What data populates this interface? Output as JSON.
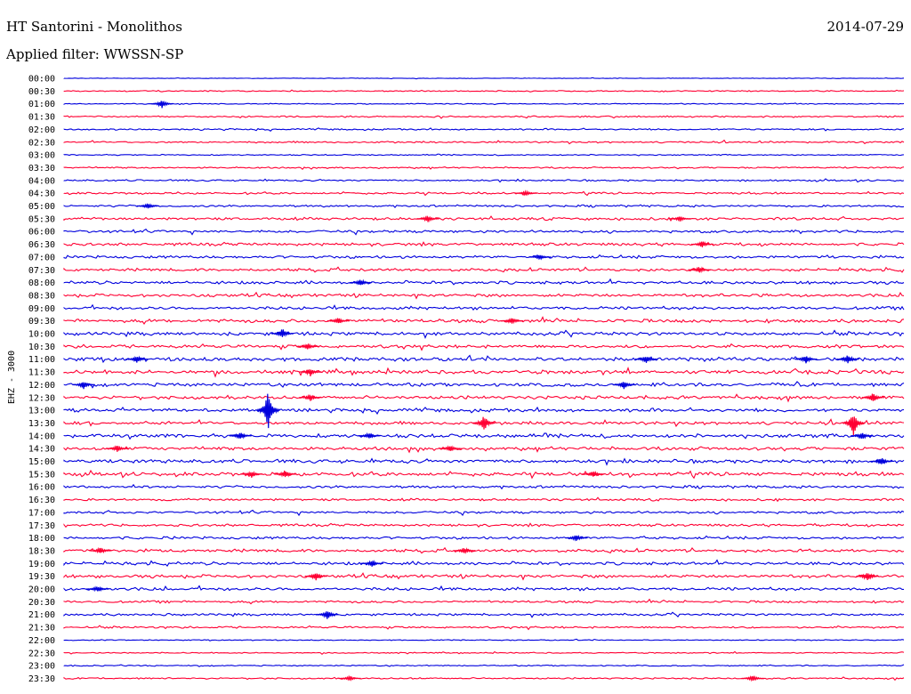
{
  "header": {
    "station": "HT Santorini - Monolithos",
    "date": "2014-07-29",
    "filter": "Applied filter: WWSSN-SP"
  },
  "chart_data": {
    "type": "line",
    "ylabel": "EHZ - 3000",
    "x_range": [
      0,
      30
    ],
    "grid": false,
    "colors": {
      "even": "#0000dd",
      "odd": "#ff0033"
    },
    "rows": [
      {
        "label": "00:00",
        "amp": 0.3
      },
      {
        "label": "00:30",
        "amp": 0.6
      },
      {
        "label": "01:00",
        "amp": 0.5
      },
      {
        "label": "01:30",
        "amp": 0.8
      },
      {
        "label": "02:00",
        "amp": 0.8
      },
      {
        "label": "02:30",
        "amp": 0.9
      },
      {
        "label": "03:00",
        "amp": 0.6
      },
      {
        "label": "03:30",
        "amp": 0.8
      },
      {
        "label": "04:00",
        "amp": 0.9
      },
      {
        "label": "04:30",
        "amp": 1.0
      },
      {
        "label": "05:00",
        "amp": 1.1
      },
      {
        "label": "05:30",
        "amp": 1.4
      },
      {
        "label": "06:00",
        "amp": 1.4
      },
      {
        "label": "06:30",
        "amp": 1.5
      },
      {
        "label": "07:00",
        "amp": 1.5
      },
      {
        "label": "07:30",
        "amp": 1.5
      },
      {
        "label": "08:00",
        "amp": 1.6
      },
      {
        "label": "08:30",
        "amp": 1.6
      },
      {
        "label": "09:00",
        "amp": 1.6
      },
      {
        "label": "09:30",
        "amp": 1.8
      },
      {
        "label": "10:00",
        "amp": 1.8
      },
      {
        "label": "10:30",
        "amp": 1.7
      },
      {
        "label": "11:00",
        "amp": 2.0
      },
      {
        "label": "11:30",
        "amp": 2.0
      },
      {
        "label": "12:00",
        "amp": 1.8
      },
      {
        "label": "12:30",
        "amp": 1.8
      },
      {
        "label": "13:00",
        "amp": 1.7
      },
      {
        "label": "13:30",
        "amp": 1.7
      },
      {
        "label": "14:00",
        "amp": 1.9
      },
      {
        "label": "14:30",
        "amp": 1.8
      },
      {
        "label": "15:00",
        "amp": 1.9
      },
      {
        "label": "15:30",
        "amp": 1.9
      },
      {
        "label": "16:00",
        "amp": 1.4
      },
      {
        "label": "16:30",
        "amp": 1.2
      },
      {
        "label": "17:00",
        "amp": 1.3
      },
      {
        "label": "17:30",
        "amp": 1.3
      },
      {
        "label": "18:00",
        "amp": 1.4
      },
      {
        "label": "18:30",
        "amp": 1.6
      },
      {
        "label": "19:00",
        "amp": 1.6
      },
      {
        "label": "19:30",
        "amp": 1.7
      },
      {
        "label": "20:00",
        "amp": 1.6
      },
      {
        "label": "20:30",
        "amp": 1.2
      },
      {
        "label": "21:00",
        "amp": 1.2
      },
      {
        "label": "21:30",
        "amp": 1.0
      },
      {
        "label": "22:00",
        "amp": 0.5
      },
      {
        "label": "22:30",
        "amp": 0.6
      },
      {
        "label": "23:00",
        "amp": 0.6
      },
      {
        "label": "23:30",
        "amp": 0.8
      }
    ],
    "events": [
      {
        "row": 2,
        "t": 3.5,
        "amp": 5
      },
      {
        "row": 9,
        "t": 16.5,
        "amp": 3
      },
      {
        "row": 10,
        "t": 3.0,
        "amp": 4
      },
      {
        "row": 11,
        "t": 13.0,
        "amp": 4
      },
      {
        "row": 11,
        "t": 22.0,
        "amp": 3
      },
      {
        "row": 13,
        "t": 22.8,
        "amp": 4
      },
      {
        "row": 14,
        "t": 17.0,
        "amp": 3
      },
      {
        "row": 15,
        "t": 22.7,
        "amp": 4
      },
      {
        "row": 16,
        "t": 10.6,
        "amp": 4
      },
      {
        "row": 19,
        "t": 9.8,
        "amp": 4
      },
      {
        "row": 19,
        "t": 16.0,
        "amp": 4
      },
      {
        "row": 20,
        "t": 7.8,
        "amp": 6
      },
      {
        "row": 21,
        "t": 8.7,
        "amp": 4
      },
      {
        "row": 22,
        "t": 2.6,
        "amp": 4
      },
      {
        "row": 22,
        "t": 20.8,
        "amp": 5
      },
      {
        "row": 22,
        "t": 26.5,
        "amp": 5
      },
      {
        "row": 22,
        "t": 28.0,
        "amp": 6
      },
      {
        "row": 23,
        "t": 8.8,
        "amp": 5
      },
      {
        "row": 24,
        "t": 0.7,
        "amp": 5
      },
      {
        "row": 24,
        "t": 20.0,
        "amp": 5
      },
      {
        "row": 25,
        "t": 8.8,
        "amp": 4
      },
      {
        "row": 25,
        "t": 28.9,
        "amp": 6
      },
      {
        "row": 26,
        "t": 7.3,
        "amp": 24
      },
      {
        "row": 27,
        "t": 15.0,
        "amp": 10
      },
      {
        "row": 27,
        "t": 28.2,
        "amp": 14
      },
      {
        "row": 28,
        "t": 6.3,
        "amp": 5
      },
      {
        "row": 28,
        "t": 10.9,
        "amp": 4
      },
      {
        "row": 28,
        "t": 28.5,
        "amp": 5
      },
      {
        "row": 29,
        "t": 1.9,
        "amp": 4
      },
      {
        "row": 29,
        "t": 13.8,
        "amp": 4
      },
      {
        "row": 30,
        "t": 29.2,
        "amp": 5
      },
      {
        "row": 31,
        "t": 6.7,
        "amp": 4
      },
      {
        "row": 31,
        "t": 7.9,
        "amp": 5
      },
      {
        "row": 31,
        "t": 18.9,
        "amp": 4
      },
      {
        "row": 36,
        "t": 18.3,
        "amp": 4
      },
      {
        "row": 37,
        "t": 1.3,
        "amp": 4
      },
      {
        "row": 37,
        "t": 14.3,
        "amp": 4
      },
      {
        "row": 38,
        "t": 11.0,
        "amp": 4
      },
      {
        "row": 39,
        "t": 9.0,
        "amp": 5
      },
      {
        "row": 39,
        "t": 28.7,
        "amp": 6
      },
      {
        "row": 40,
        "t": 1.2,
        "amp": 4
      },
      {
        "row": 42,
        "t": 9.4,
        "amp": 6
      },
      {
        "row": 47,
        "t": 10.2,
        "amp": 3
      },
      {
        "row": 47,
        "t": 24.6,
        "amp": 4
      }
    ]
  }
}
